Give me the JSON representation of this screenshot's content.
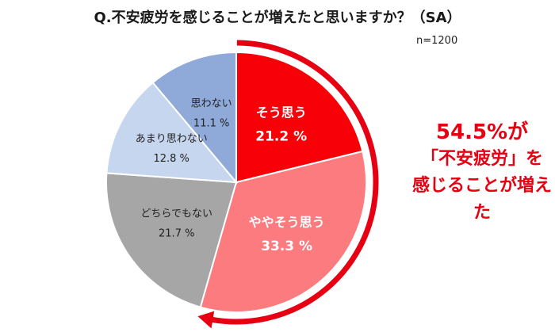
{
  "title": "Q.不安疲労を感じることが増えたと思いますか？（SA）",
  "sample_size": "n=1200",
  "callout": {
    "line1": "54.5%が",
    "line2": "「不安疲労」を",
    "line3": "感じることが増えた"
  },
  "chart_data": {
    "type": "pie",
    "title": "Q.不安疲労を感じることが増えたと思いますか？（SA）",
    "start": "12 o'clock",
    "direction": "clockwise",
    "slices": [
      {
        "label": "そう思う",
        "value": 21.2,
        "display": "21.2 %",
        "color": "#f70007",
        "text_color": "#ffffff",
        "bold": true
      },
      {
        "label": "ややそう思う",
        "value": 33.3,
        "display": "33.3 %",
        "color": "#fb7b7e",
        "text_color": "#ffffff",
        "bold": true
      },
      {
        "label": "どちらでもない",
        "value": 21.7,
        "display": "21.7 %",
        "color": "#a6a6a6",
        "text_color": "#222222",
        "bold": false
      },
      {
        "label": "あまり思わない",
        "value": 12.8,
        "display": "12.8 %",
        "color": "#c6d6ee",
        "text_color": "#222222",
        "bold": false
      },
      {
        "label": "思わない",
        "value": 11.1,
        "display": "11.1 %",
        "color": "#8faad8",
        "text_color": "#222222",
        "bold": false
      }
    ],
    "highlight_arrow": {
      "color": "#e60012",
      "covers": [
        "そう思う",
        "ややそう思う"
      ],
      "total": "54.5%"
    }
  }
}
